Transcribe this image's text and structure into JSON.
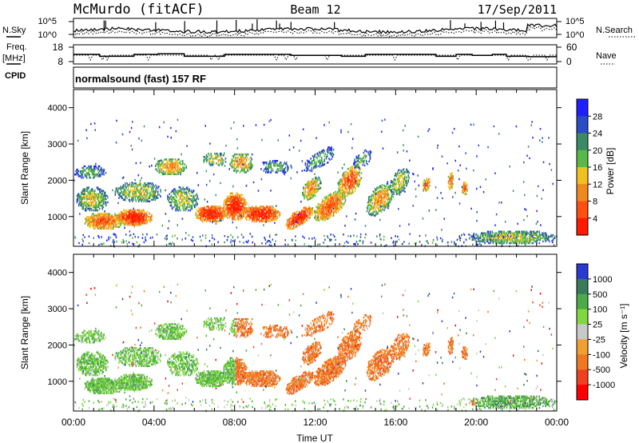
{
  "header": {
    "station": "McMurdo (fitACF)",
    "beam": "Beam 12",
    "date": "17/Sep/2011"
  },
  "left_labels": {
    "nsky": "N.Sky",
    "freq_top": "Freq.",
    "freq_unit": "[MHz]",
    "cpid": "CPID"
  },
  "right_labels": {
    "nsearch": "N.Search",
    "nave": "Nave"
  },
  "cpid_text": "normalsound (fast) 157 RF",
  "chart_data": [
    {
      "type": "line",
      "name": "noise",
      "yticks_left": [
        "10^5",
        "10^0"
      ],
      "yticks_right": [
        "10^5",
        "10^0"
      ],
      "series": [
        {
          "name": "N.Sky"
        },
        {
          "name": "N.Search"
        }
      ]
    },
    {
      "type": "line",
      "name": "frequency-nave",
      "yticks_left": [
        "18",
        "8"
      ],
      "yticks_right": [
        "60",
        "0"
      ],
      "ylim_left": [
        8,
        18
      ],
      "ylim_right": [
        0,
        60
      ],
      "series": [
        {
          "name": "Freq."
        },
        {
          "name": "Nave"
        }
      ]
    },
    {
      "type": "heatmap",
      "name": "power",
      "ylabel": "Slant Range [km]",
      "ylim": [
        180,
        4500
      ],
      "yticks": [
        1000,
        2000,
        3000,
        4000
      ],
      "xlim_hours": [
        0,
        24
      ],
      "colorbar": {
        "label": "Power [dB]",
        "ticks": [
          "28",
          "24",
          "20",
          "16",
          "12",
          "8",
          "4"
        ],
        "colors": [
          "#1f1fff",
          "#2a4cc4",
          "#3a8a64",
          "#58b84a",
          "#f0c020",
          "#f08820",
          "#ff5010",
          "#ff1a00"
        ]
      },
      "time_range_hours": [
        0,
        24
      ],
      "range_km": [
        180,
        4500
      ]
    },
    {
      "type": "heatmap",
      "name": "velocity",
      "ylabel": "Slant Range [km]",
      "ylim": [
        180,
        4500
      ],
      "yticks": [
        1000,
        2000,
        3000,
        4000
      ],
      "xlim_hours": [
        0,
        24
      ],
      "xlabel": "Time UT",
      "xticks": [
        "00:00",
        "04:00",
        "08:00",
        "12:00",
        "16:00",
        "20:00",
        "00:00"
      ],
      "colorbar": {
        "label": "Velocity [m s⁻¹]",
        "ticks": [
          "1000",
          "500",
          "100",
          "25",
          "-25",
          "-100",
          "-500",
          "-1000"
        ],
        "colors": [
          "#2a3ad0",
          "#3a7a5c",
          "#4caa48",
          "#80d840",
          "#c8c8c8",
          "#f0a030",
          "#f07820",
          "#f04020",
          "#ff0000"
        ]
      },
      "time_range_hours": [
        0,
        24
      ],
      "range_km": [
        180,
        4500
      ]
    }
  ]
}
